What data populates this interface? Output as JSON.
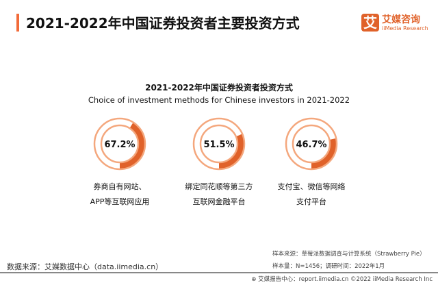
{
  "header": {
    "title": "2021-2022年中国证券投资者主要投资方式",
    "logo_mark": "艾",
    "logo_cn": "艾媒咨询",
    "logo_en": "iiMedia Research"
  },
  "chart_data": {
    "type": "pie",
    "title": "2021-2022年中国证券投资者投资方式",
    "subtitle": "Choice of investment methods for Chinese investors in 2021-2022",
    "items": [
      {
        "label_line1": "券商自有网站、",
        "label_line2": "APP等互联网应用",
        "value": 67.2,
        "display": "67.2%"
      },
      {
        "label_line1": "绑定同花顺等第三方",
        "label_line2": "互联网金融平台",
        "value": 51.5,
        "display": "51.5%"
      },
      {
        "label_line1": "支付宝、微信等网络",
        "label_line2": "支付平台",
        "value": 46.7,
        "display": "46.7%"
      }
    ],
    "colors": {
      "fill": "#E0622A",
      "ring": "#F4A77D"
    }
  },
  "footer": {
    "source": "数据来源：艾媒数据中心（data.iimedia.cn）",
    "sample_source": "样本来源：草莓派数据调查与计算系统（Strawberry Pie）",
    "sample_size": "样本量：N=1456；调研时间：2022年1月",
    "copyright": "艾媒报告中心：report.iimedia.cn  ©2022  iiMedia Research Inc"
  }
}
